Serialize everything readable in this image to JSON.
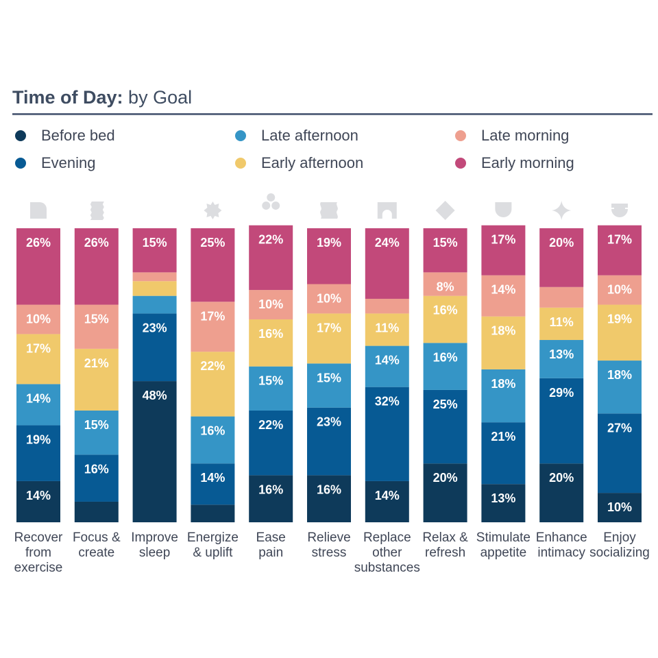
{
  "header": {
    "title_bold": "Time of Day:",
    "title_rest": " by Goal"
  },
  "legend": [
    {
      "name": "Before bed",
      "color": "#0e3a5a"
    },
    {
      "name": "Evening",
      "color": "#075a94"
    },
    {
      "name": "Late afternoon",
      "color": "#3595c6"
    },
    {
      "name": "Early afternoon",
      "color": "#f0c96b"
    },
    {
      "name": "Late morning",
      "color": "#ee9f8f"
    },
    {
      "name": "Early morning",
      "color": "#c2497a"
    }
  ],
  "chart_data": {
    "type": "bar",
    "stacked": true,
    "orientation": "vertical",
    "ylim": [
      0,
      100
    ],
    "categories": [
      "Recover from exercise",
      "Focus & create",
      "Improve sleep",
      "Energize & uplift",
      "Ease pain",
      "Relieve stress",
      "Replace other substances",
      "Relax & refresh",
      "Stimulate appetite",
      "Enhance intimacy",
      "Enjoy socializing"
    ],
    "category_lines": [
      [
        "Recover",
        "from",
        "exercise"
      ],
      [
        "Focus &",
        "create"
      ],
      [
        "Improve",
        "sleep"
      ],
      [
        "Energize",
        "& uplift"
      ],
      [
        "Ease",
        "pain"
      ],
      [
        "Relieve",
        "stress"
      ],
      [
        "Replace",
        "other",
        "substances"
      ],
      [
        "Relax &",
        "refresh"
      ],
      [
        "Stimulate",
        "appetite"
      ],
      [
        "Enhance",
        "intimacy"
      ],
      [
        "Enjoy",
        "socializing"
      ]
    ],
    "icons": [
      "rounded-square-icon",
      "scalloped-square-icon",
      "crescent-moon-icon",
      "sunburst-icon",
      "clover-icon",
      "wavy-square-icon",
      "arch-icon",
      "diamond-icon",
      "shield-icon",
      "four-point-star-icon",
      "bowl-icon"
    ],
    "series": [
      {
        "name": "Before bed",
        "color": "#0e3a5a",
        "values": [
          14,
          7,
          48,
          6,
          16,
          16,
          14,
          20,
          13,
          20,
          10
        ],
        "labels": [
          "14%",
          "",
          "48%",
          "",
          "16%",
          "16%",
          "14%",
          "20%",
          "13%",
          "20%",
          "10%"
        ]
      },
      {
        "name": "Evening",
        "color": "#075a94",
        "values": [
          19,
          16,
          23,
          14,
          22,
          23,
          32,
          25,
          21,
          29,
          27
        ],
        "labels": [
          "19%",
          "16%",
          "23%",
          "14%",
          "22%",
          "23%",
          "32%",
          "25%",
          "21%",
          "29%",
          "27%"
        ]
      },
      {
        "name": "Late afternoon",
        "color": "#3595c6",
        "values": [
          14,
          15,
          6,
          16,
          15,
          15,
          14,
          16,
          18,
          13,
          18
        ],
        "labels": [
          "14%",
          "15%",
          "",
          "16%",
          "15%",
          "15%",
          "14%",
          "16%",
          "18%",
          "13%",
          "18%"
        ]
      },
      {
        "name": "Early afternoon",
        "color": "#f0c96b",
        "values": [
          17,
          21,
          5,
          22,
          16,
          17,
          11,
          16,
          18,
          11,
          19
        ],
        "labels": [
          "17%",
          "21%",
          "",
          "22%",
          "16%",
          "17%",
          "11%",
          "16%",
          "18%",
          "11%",
          "19%"
        ]
      },
      {
        "name": "Late morning",
        "color": "#ee9f8f",
        "values": [
          10,
          15,
          3,
          17,
          10,
          10,
          5,
          8,
          14,
          7,
          10
        ],
        "labels": [
          "10%",
          "15%",
          "",
          "17%",
          "10%",
          "10%",
          "",
          "8%",
          "14%",
          "",
          "10%"
        ]
      },
      {
        "name": "Early morning",
        "color": "#c2497a",
        "values": [
          26,
          26,
          15,
          25,
          22,
          19,
          24,
          15,
          17,
          20,
          17
        ],
        "labels": [
          "26%",
          "26%",
          "15%",
          "25%",
          "22%",
          "19%",
          "24%",
          "15%",
          "17%",
          "20%",
          "17%"
        ]
      }
    ]
  }
}
